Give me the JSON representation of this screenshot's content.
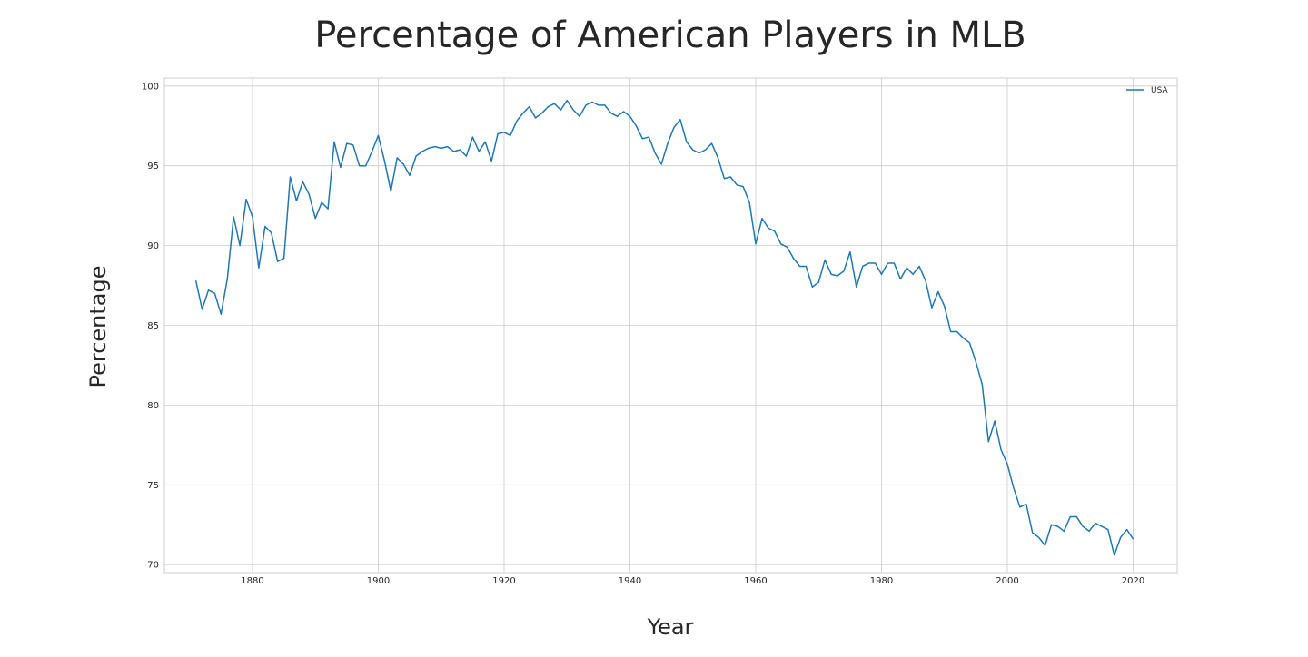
{
  "chart_data": {
    "type": "line",
    "title": "Percentage of American Players in MLB",
    "xlabel": "Year",
    "ylabel": "Percentage",
    "xlim": [
      1866,
      2027
    ],
    "ylim": [
      69.5,
      100.5
    ],
    "xticks": [
      1880,
      1900,
      1920,
      1940,
      1960,
      1980,
      2000,
      2020
    ],
    "yticks": [
      70,
      75,
      80,
      85,
      90,
      95,
      100
    ],
    "grid": true,
    "legend": "top-right",
    "colors": {
      "series": "#1f77b4",
      "grid": "#cccccc",
      "text": "#262626"
    },
    "x": [
      1871,
      1872,
      1873,
      1874,
      1875,
      1876,
      1877,
      1878,
      1879,
      1880,
      1881,
      1882,
      1883,
      1884,
      1885,
      1886,
      1887,
      1888,
      1889,
      1890,
      1891,
      1892,
      1893,
      1894,
      1895,
      1896,
      1897,
      1898,
      1899,
      1900,
      1901,
      1902,
      1903,
      1904,
      1905,
      1906,
      1907,
      1908,
      1909,
      1910,
      1911,
      1912,
      1913,
      1914,
      1915,
      1916,
      1917,
      1918,
      1919,
      1920,
      1921,
      1922,
      1923,
      1924,
      1925,
      1926,
      1927,
      1928,
      1929,
      1930,
      1931,
      1932,
      1933,
      1934,
      1935,
      1936,
      1937,
      1938,
      1939,
      1940,
      1941,
      1942,
      1943,
      1944,
      1945,
      1946,
      1947,
      1948,
      1949,
      1950,
      1951,
      1952,
      1953,
      1954,
      1955,
      1956,
      1957,
      1958,
      1959,
      1960,
      1961,
      1962,
      1963,
      1964,
      1965,
      1966,
      1967,
      1968,
      1969,
      1970,
      1971,
      1972,
      1973,
      1974,
      1975,
      1976,
      1977,
      1978,
      1979,
      1980,
      1981,
      1982,
      1983,
      1984,
      1985,
      1986,
      1987,
      1988,
      1989,
      1990,
      1991,
      1992,
      1993,
      1994,
      1995,
      1996,
      1997,
      1998,
      1999,
      2000,
      2001,
      2002,
      2003,
      2004,
      2005,
      2006,
      2007,
      2008,
      2009,
      2010,
      2011,
      2012,
      2013,
      2014,
      2015,
      2016,
      2017,
      2018,
      2019,
      2020
    ],
    "series": [
      {
        "name": "USA",
        "values": [
          87.8,
          86.0,
          87.2,
          87.0,
          85.7,
          87.9,
          91.8,
          90.0,
          92.9,
          91.8,
          88.6,
          91.2,
          90.8,
          89.0,
          89.2,
          94.3,
          92.8,
          94.0,
          93.2,
          91.7,
          92.7,
          92.3,
          96.5,
          94.9,
          96.4,
          96.3,
          95.0,
          95.0,
          95.9,
          96.9,
          95.3,
          93.4,
          95.5,
          95.1,
          94.4,
          95.6,
          95.9,
          96.1,
          96.2,
          96.1,
          96.2,
          95.9,
          96.0,
          95.6,
          96.8,
          95.9,
          96.5,
          95.3,
          97.0,
          97.1,
          96.9,
          97.8,
          98.3,
          98.7,
          98.0,
          98.3,
          98.7,
          98.9,
          98.5,
          99.1,
          98.5,
          98.1,
          98.8,
          99.0,
          98.8,
          98.8,
          98.3,
          98.1,
          98.4,
          98.1,
          97.5,
          96.7,
          96.8,
          95.8,
          95.1,
          96.4,
          97.4,
          97.9,
          96.5,
          96.0,
          95.8,
          96.0,
          96.4,
          95.5,
          94.2,
          94.3,
          93.8,
          93.7,
          92.7,
          90.1,
          91.7,
          91.1,
          90.9,
          90.1,
          89.9,
          89.2,
          88.7,
          88.7,
          87.4,
          87.7,
          89.1,
          88.2,
          88.1,
          88.4,
          89.6,
          87.4,
          88.7,
          88.9,
          88.9,
          88.2,
          88.9,
          88.9,
          87.9,
          88.6,
          88.2,
          88.7,
          87.8,
          86.1,
          87.1,
          86.2,
          84.6,
          84.6,
          84.2,
          83.9,
          82.7,
          81.3,
          77.7,
          79.0,
          77.2,
          76.3,
          74.8,
          73.6,
          73.8,
          72.0,
          71.7,
          71.2,
          72.5,
          72.4,
          72.1,
          73.0,
          73.0,
          72.4,
          72.1,
          72.6,
          72.4,
          72.2,
          70.6,
          71.7,
          72.2,
          71.6
        ]
      }
    ]
  }
}
